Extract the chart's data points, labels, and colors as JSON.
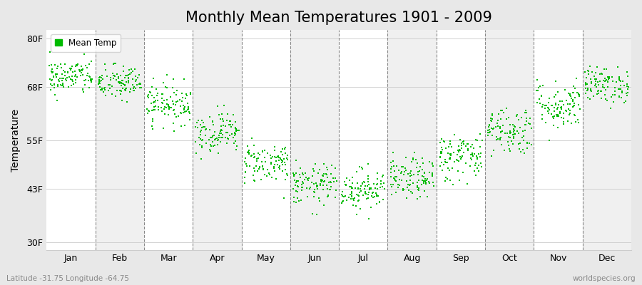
{
  "title": "Monthly Mean Temperatures 1901 - 2009",
  "ylabel": "Temperature",
  "ytick_labels": [
    "30F",
    "43F",
    "55F",
    "68F",
    "80F"
  ],
  "ytick_values": [
    30,
    43,
    55,
    68,
    80
  ],
  "ylim": [
    28,
    82
  ],
  "month_labels": [
    "Jan",
    "Feb",
    "Mar",
    "Apr",
    "May",
    "Jun",
    "Jul",
    "Aug",
    "Sep",
    "Oct",
    "Nov",
    "Dec"
  ],
  "dot_color": "#00bb00",
  "legend_label": "Mean Temp",
  "bottom_left_text": "Latitude -31.75 Longitude -64.75",
  "bottom_right_text": "worldspecies.org",
  "background_color": "#e8e8e8",
  "plot_bg_color": "#f0f0f0",
  "alt_bg_color": "#ffffff",
  "dashed_line_color": "#888888",
  "title_fontsize": 15,
  "axis_label_fontsize": 10,
  "tick_fontsize": 9,
  "monthly_mean_temps": [
    70.5,
    69.0,
    64.0,
    57.0,
    49.5,
    44.0,
    43.0,
    45.5,
    51.0,
    57.5,
    63.5,
    68.5
  ],
  "monthly_std": [
    2.2,
    2.2,
    2.5,
    2.5,
    2.5,
    2.5,
    2.5,
    2.5,
    3.0,
    3.0,
    3.0,
    2.2
  ],
  "num_years": 109,
  "random_seed": 42
}
